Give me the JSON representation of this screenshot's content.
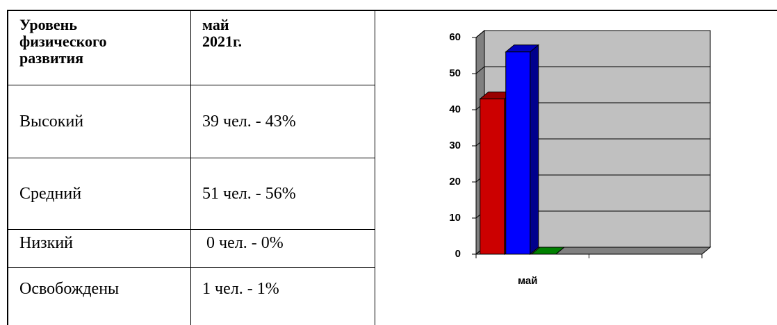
{
  "table": {
    "header": [
      "Уровень физического развития",
      "май 2021г."
    ],
    "rows": [
      [
        "Высокий",
        "39 чел. - 43%"
      ],
      [
        "Средний",
        "51 чел. - 56%"
      ],
      [
        "Низкий",
        " 0 чел. - 0%"
      ],
      [
        "Освобождены",
        "1 чел. - 1%"
      ]
    ]
  },
  "chart_data": {
    "type": "bar3d",
    "categories": [
      "май"
    ],
    "series": [
      {
        "color": "#cc0000",
        "values": [
          43
        ]
      },
      {
        "color": "#0000ff",
        "values": [
          56
        ]
      },
      {
        "color": "#00aa00",
        "values": [
          0
        ]
      }
    ],
    "ylim": [
      0,
      60
    ],
    "yticks": [
      0,
      10,
      20,
      30,
      40,
      50,
      60
    ],
    "grid": true
  }
}
